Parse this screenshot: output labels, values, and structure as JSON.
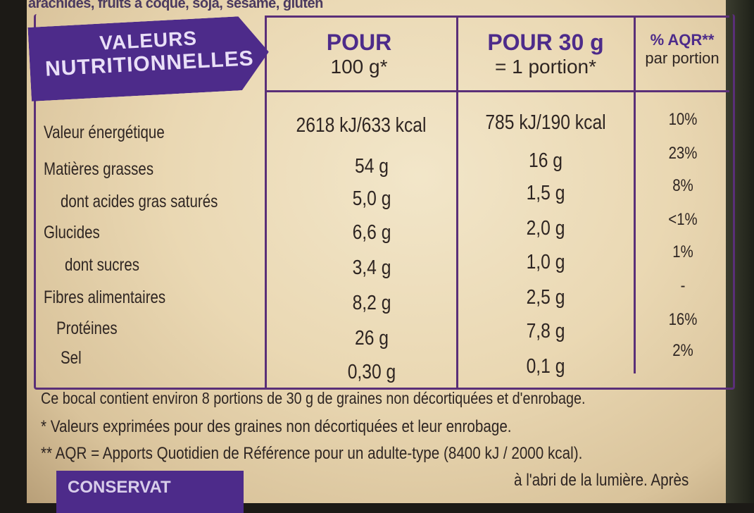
{
  "top_text": "arachides, fruits à coque, soja, sésame, gluten",
  "banner": {
    "line1": "VALEURS",
    "line2": "NUTRITIONNELLES"
  },
  "columns": {
    "per100": {
      "line1": "POUR",
      "line2": "100 g*"
    },
    "per30": {
      "line1": "POUR 30 g",
      "line2": "= 1 portion*"
    },
    "aqr": {
      "line1": "% AQR**",
      "line2": "par portion"
    }
  },
  "rows": [
    {
      "label": "Valeur énergétique",
      "per100": "2618 kJ/633 kcal",
      "per30": "785 kJ/190 kcal",
      "aqr": "10%"
    },
    {
      "label": "Matières grasses",
      "per100": "54 g",
      "per30": "16 g",
      "aqr": "23%"
    },
    {
      "label": "dont acides gras saturés",
      "per100": "5,0 g",
      "per30": "1,5 g",
      "aqr": "8%"
    },
    {
      "label": "Glucides",
      "per100": "6,6 g",
      "per30": "2,0 g",
      "aqr": "<1%"
    },
    {
      "label": "dont sucres",
      "per100": "3,4 g",
      "per30": "1,0 g",
      "aqr": "1%"
    },
    {
      "label": "Fibres alimentaires",
      "per100": "8,2 g",
      "per30": "2,5 g",
      "aqr": "-"
    },
    {
      "label": "Protéines",
      "per100": "26 g",
      "per30": "7,8 g",
      "aqr": "16%"
    },
    {
      "label": "Sel",
      "per100": "0,30 g",
      "per30": "0,1 g",
      "aqr": "2%"
    }
  ],
  "footnotes": [
    "Ce bocal contient environ 8 portions de 30 g de graines non décortiquées et d'enrobage.",
    "* Valeurs exprimées pour des graines non décortiquées et leur enrobage.",
    "** AQR = Apports Quotidien de Référence pour un adulte-type (8400 kJ / 2000 kcal)."
  ],
  "conservation_label": "CONSERVAT",
  "bottom_right_text": "à l'abri de la lumière. Après"
}
